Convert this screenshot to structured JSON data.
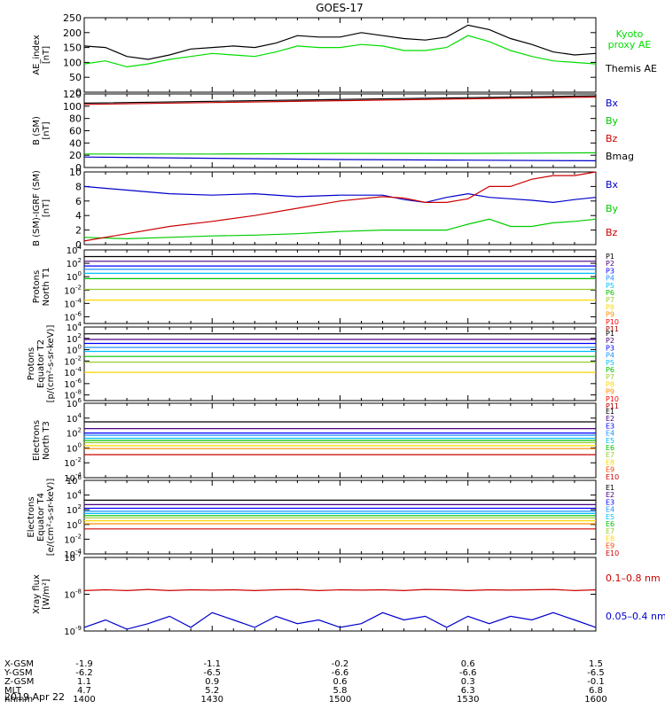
{
  "title": "GOES-17",
  "date_label": "2019 Apr 22",
  "chart_data": [
    {
      "type": "line",
      "panel": "ae",
      "ylabel": "AE_index\n[nT]",
      "ylim": [
        0,
        250
      ],
      "yticks": [
        "0",
        "50",
        "100",
        "150",
        "200",
        "250"
      ],
      "log": false,
      "x": [
        0,
        5,
        10,
        15,
        20,
        25,
        30,
        35,
        40,
        45,
        50,
        55,
        60,
        65,
        70,
        75,
        80,
        85,
        90,
        95,
        100,
        105,
        110,
        115,
        120
      ],
      "series": [
        {
          "name": "Themis AE",
          "color": "#000000",
          "values": [
            155,
            150,
            120,
            110,
            125,
            145,
            150,
            155,
            150,
            165,
            190,
            185,
            185,
            200,
            190,
            180,
            175,
            185,
            225,
            210,
            180,
            160,
            135,
            125,
            130
          ]
        },
        {
          "name": "Kyoto proxy AE",
          "color": "#00dd00",
          "values": [
            95,
            105,
            85,
            95,
            110,
            120,
            130,
            125,
            120,
            135,
            155,
            150,
            150,
            160,
            155,
            140,
            140,
            150,
            190,
            170,
            140,
            120,
            105,
            100,
            95
          ]
        }
      ],
      "legend": [
        {
          "text": "Kyoto\nproxy AE",
          "color": "#00dd00"
        },
        {
          "text": "Themis AE",
          "color": "#000000"
        }
      ]
    },
    {
      "type": "line",
      "panel": "bsm",
      "ylabel": "B (SM)\n[nT]",
      "ylim": [
        0,
        120
      ],
      "yticks": [
        "0",
        "20",
        "40",
        "60",
        "80",
        "100",
        "120"
      ],
      "log": false,
      "x": [
        0,
        30,
        60,
        90,
        120
      ],
      "series": [
        {
          "name": "Bx",
          "color": "#0000cc",
          "values": [
            17,
            15,
            13,
            12,
            11
          ]
        },
        {
          "name": "By",
          "color": "#00cc00",
          "values": [
            22,
            22,
            23,
            23,
            24
          ]
        },
        {
          "name": "Bz",
          "color": "#cc0000",
          "values": [
            103,
            106,
            109,
            112,
            115
          ]
        },
        {
          "name": "Bmag",
          "color": "#000000",
          "values": [
            105,
            108,
            111,
            114,
            117
          ]
        }
      ],
      "legend": [
        {
          "text": "Bx",
          "color": "#0000cc"
        },
        {
          "text": "By",
          "color": "#00cc00"
        },
        {
          "text": "Bz",
          "color": "#cc0000"
        },
        {
          "text": "Bmag",
          "color": "#000000"
        }
      ]
    },
    {
      "type": "line",
      "panel": "bdiff",
      "ylabel": "B (SM)-IGRF (SM)\n[nT]",
      "ylim": [
        0,
        10
      ],
      "yticks": [
        "0",
        "2",
        "4",
        "6",
        "8",
        "10"
      ],
      "log": false,
      "x": [
        0,
        10,
        20,
        30,
        40,
        50,
        60,
        70,
        75,
        80,
        85,
        90,
        95,
        100,
        105,
        110,
        115,
        120
      ],
      "series": [
        {
          "name": "Bx",
          "color": "#0000cc",
          "values": [
            8,
            7.5,
            7,
            6.8,
            7,
            6.6,
            6.8,
            6.8,
            6.2,
            5.8,
            6.5,
            7,
            6.5,
            6.3,
            6.1,
            5.8,
            6.2,
            6.5
          ]
        },
        {
          "name": "By",
          "color": "#00cc00",
          "values": [
            1,
            0.8,
            1,
            1.2,
            1.3,
            1.5,
            1.8,
            2,
            2,
            2,
            2,
            2.8,
            3.5,
            2.5,
            2.5,
            3,
            3.2,
            3.5
          ]
        },
        {
          "name": "Bz",
          "color": "#cc0000",
          "values": [
            0.5,
            1.5,
            2.5,
            3.2,
            4,
            5,
            6,
            6.6,
            6.4,
            5.8,
            5.8,
            6.3,
            8,
            8,
            9,
            9.5,
            9.5,
            10
          ]
        }
      ],
      "legend": [
        {
          "text": "Bx",
          "color": "#0000cc"
        },
        {
          "text": "By",
          "color": "#00cc00"
        },
        {
          "text": "Bz",
          "color": "#cc0000"
        }
      ]
    },
    {
      "type": "line",
      "panel": "pn",
      "ylabel": "Protons\nNorth T1",
      "ylim": [
        -7,
        4
      ],
      "yticks": [
        "10^-6",
        "10^-4",
        "10^-2",
        "10^0",
        "10^2",
        "10^4"
      ],
      "log": true,
      "x": [
        0,
        120
      ],
      "series": [
        {
          "name": "P1",
          "color": "#000000",
          "values": [
            3.0,
            3.0
          ]
        },
        {
          "name": "P2",
          "color": "#4b0082",
          "values": [
            2.3,
            2.3
          ]
        },
        {
          "name": "P3",
          "color": "#0000ff",
          "values": [
            1.6,
            1.6
          ]
        },
        {
          "name": "P4",
          "color": "#1e90ff",
          "values": [
            1.1,
            1.1
          ]
        },
        {
          "name": "P5",
          "color": "#00bfff",
          "values": [
            0.5,
            0.5
          ]
        },
        {
          "name": "P6",
          "color": "#00c000",
          "values": [
            -0.3,
            -0.3
          ]
        },
        {
          "name": "P7",
          "color": "#9acd32",
          "values": [
            -1.9,
            -1.9
          ]
        },
        {
          "name": "P8",
          "color": "#ffd700",
          "values": [
            -3.5,
            -3.5
          ]
        }
      ],
      "legend": [
        {
          "text": "P1",
          "color": "#000000"
        },
        {
          "text": "P2",
          "color": "#4b0082"
        },
        {
          "text": "P3",
          "color": "#0000ff"
        },
        {
          "text": "P4",
          "color": "#1e90ff"
        },
        {
          "text": "P5",
          "color": "#00bfff"
        },
        {
          "text": "P6",
          "color": "#00c000"
        },
        {
          "text": "P7",
          "color": "#9acd32"
        },
        {
          "text": "P8",
          "color": "#ffd700"
        },
        {
          "text": "P9",
          "color": "#ff8c00"
        },
        {
          "text": "P10",
          "color": "#ff0000"
        },
        {
          "text": "P11",
          "color": "#b00000"
        }
      ]
    },
    {
      "type": "line",
      "panel": "pe",
      "ylabel": "Protons\nEquator T2\n[p/(cm²-s-sr-keV)]",
      "ylim": [
        -9,
        4
      ],
      "yticks": [
        "10^-8",
        "10^-6",
        "10^-4",
        "10^-2",
        "10^0",
        "10^2",
        "10^4"
      ],
      "log": true,
      "x": [
        0,
        120
      ],
      "series": [
        {
          "name": "P1",
          "color": "#000000",
          "values": [
            2.8,
            2.8
          ]
        },
        {
          "name": "P2",
          "color": "#4b0082",
          "values": [
            1.8,
            1.8
          ]
        },
        {
          "name": "P3",
          "color": "#0000ff",
          "values": [
            1.1,
            1.1
          ]
        },
        {
          "name": "P4",
          "color": "#1e90ff",
          "values": [
            0.4,
            0.4
          ]
        },
        {
          "name": "P5",
          "color": "#00bfff",
          "values": [
            -0.3,
            -0.3
          ]
        },
        {
          "name": "P6",
          "color": "#00c000",
          "values": [
            -1.2,
            -1.2
          ]
        },
        {
          "name": "P7",
          "color": "#9acd32",
          "values": [
            -2.2,
            -2.2
          ]
        },
        {
          "name": "P8",
          "color": "#ffd700",
          "values": [
            -4.0,
            -4.0
          ]
        }
      ],
      "legend": [
        {
          "text": "P1",
          "color": "#000000"
        },
        {
          "text": "P2",
          "color": "#4b0082"
        },
        {
          "text": "P3",
          "color": "#0000ff"
        },
        {
          "text": "P4",
          "color": "#1e90ff"
        },
        {
          "text": "P5",
          "color": "#00bfff"
        },
        {
          "text": "P6",
          "color": "#00c000"
        },
        {
          "text": "P7",
          "color": "#9acd32"
        },
        {
          "text": "P8",
          "color": "#ffd700"
        },
        {
          "text": "P9",
          "color": "#ff8c00"
        },
        {
          "text": "P10",
          "color": "#ff0000"
        },
        {
          "text": "P11",
          "color": "#b00000"
        }
      ]
    },
    {
      "type": "line",
      "panel": "en",
      "ylabel": "Electrons\nNorth T3",
      "ylim": [
        -4,
        6
      ],
      "yticks": [
        "10^-4",
        "10^-2",
        "10^0",
        "10^2",
        "10^4",
        "10^6"
      ],
      "log": true,
      "x": [
        0,
        120
      ],
      "series": [
        {
          "name": "E1",
          "color": "#000000",
          "values": [
            3.5,
            3.5
          ]
        },
        {
          "name": "E2",
          "color": "#4b0082",
          "values": [
            2.6,
            2.6
          ]
        },
        {
          "name": "E3",
          "color": "#0000ff",
          "values": [
            2.0,
            2.0
          ]
        },
        {
          "name": "E4",
          "color": "#1e90ff",
          "values": [
            1.7,
            1.7
          ]
        },
        {
          "name": "E5",
          "color": "#00bfff",
          "values": [
            1.3,
            1.3
          ]
        },
        {
          "name": "E6",
          "color": "#00c000",
          "values": [
            1.0,
            1.0
          ]
        },
        {
          "name": "E7",
          "color": "#9acd32",
          "values": [
            0.7,
            0.7
          ]
        },
        {
          "name": "E8",
          "color": "#ffd700",
          "values": [
            0.3,
            0.3
          ]
        },
        {
          "name": "E9",
          "color": "#ff8c00",
          "values": [
            -0.1,
            -0.1
          ]
        },
        {
          "name": "E10",
          "color": "#cc0000",
          "values": [
            -0.9,
            -0.9
          ]
        }
      ],
      "legend": [
        {
          "text": "E1",
          "color": "#000000"
        },
        {
          "text": "E2",
          "color": "#4b0082"
        },
        {
          "text": "E3",
          "color": "#0000ff"
        },
        {
          "text": "E4",
          "color": "#1e90ff"
        },
        {
          "text": "E5",
          "color": "#00bfff"
        },
        {
          "text": "E6",
          "color": "#00c000"
        },
        {
          "text": "E7",
          "color": "#9acd32"
        },
        {
          "text": "E8",
          "color": "#ffd700"
        },
        {
          "text": "E9",
          "color": "#ff4500"
        },
        {
          "text": "E10",
          "color": "#cc0000"
        }
      ]
    },
    {
      "type": "line",
      "panel": "ee",
      "ylabel": "Electrons\nEquator T4\n[e/(cm²-s-sr-keV)]",
      "ylim": [
        -4,
        6
      ],
      "yticks": [
        "10^-4",
        "10^-2",
        "10^0",
        "10^2",
        "10^4",
        "10^6"
      ],
      "log": true,
      "x": [
        0,
        120
      ],
      "series": [
        {
          "name": "E1",
          "color": "#000000",
          "values": [
            3.3,
            3.3
          ]
        },
        {
          "name": "E2",
          "color": "#4b0082",
          "values": [
            2.7,
            2.7
          ]
        },
        {
          "name": "E3",
          "color": "#0000ff",
          "values": [
            2.2,
            2.2
          ]
        },
        {
          "name": "E4",
          "color": "#1e90ff",
          "values": [
            1.8,
            1.8
          ]
        },
        {
          "name": "E5",
          "color": "#00bfff",
          "values": [
            1.5,
            1.5
          ]
        },
        {
          "name": "E6",
          "color": "#00c000",
          "values": [
            1.2,
            1.2
          ]
        },
        {
          "name": "E7",
          "color": "#9acd32",
          "values": [
            0.9,
            0.9
          ]
        },
        {
          "name": "E8",
          "color": "#ffd700",
          "values": [
            0.5,
            0.5
          ]
        },
        {
          "name": "E9",
          "color": "#ff8c00",
          "values": [
            0.1,
            0.1
          ]
        },
        {
          "name": "E10",
          "color": "#cc0000",
          "values": [
            -0.6,
            -0.6
          ]
        }
      ],
      "legend": [
        {
          "text": "E1",
          "color": "#000000"
        },
        {
          "text": "E2",
          "color": "#4b0082"
        },
        {
          "text": "E3",
          "color": "#0000ff"
        },
        {
          "text": "E4",
          "color": "#1e90ff"
        },
        {
          "text": "E5",
          "color": "#00bfff"
        },
        {
          "text": "E6",
          "color": "#00c000"
        },
        {
          "text": "E7",
          "color": "#9acd32"
        },
        {
          "text": "E8",
          "color": "#ffd700"
        },
        {
          "text": "E9",
          "color": "#ff4500"
        },
        {
          "text": "E10",
          "color": "#cc0000"
        }
      ]
    },
    {
      "type": "line",
      "panel": "xray",
      "ylabel": "Xray flux\n[W/m²]",
      "ylim": [
        -9,
        -7
      ],
      "yticks": [
        "10^-9",
        "10^-8",
        "10^-7"
      ],
      "log": true,
      "x": [
        0,
        5,
        10,
        15,
        20,
        25,
        30,
        35,
        40,
        45,
        50,
        55,
        60,
        65,
        70,
        75,
        80,
        85,
        90,
        95,
        100,
        105,
        110,
        115,
        120
      ],
      "series": [
        {
          "name": "0.1-0.8 nm",
          "color": "#cc0000",
          "values": [
            -7.9,
            -7.88,
            -7.9,
            -7.87,
            -7.9,
            -7.88,
            -7.89,
            -7.88,
            -7.9,
            -7.88,
            -7.87,
            -7.9,
            -7.88,
            -7.89,
            -7.88,
            -7.9,
            -7.87,
            -7.88,
            -7.9,
            -7.88,
            -7.89,
            -7.88,
            -7.87,
            -7.9,
            -7.88
          ]
        },
        {
          "name": "0.05-0.4 nm",
          "color": "#0000cc",
          "values": [
            -8.9,
            -8.7,
            -8.95,
            -8.8,
            -8.6,
            -8.9,
            -8.5,
            -8.7,
            -8.9,
            -8.6,
            -8.8,
            -8.7,
            -8.9,
            -8.8,
            -8.5,
            -8.7,
            -8.6,
            -8.9,
            -8.6,
            -8.8,
            -8.6,
            -8.7,
            -8.5,
            -8.7,
            -8.9
          ]
        }
      ],
      "legend": [
        {
          "text": "0.1–0.8 nm",
          "color": "#cc0000"
        },
        {
          "text": "0.05–0.4 nm",
          "color": "#0000cc"
        }
      ]
    }
  ],
  "x_axis": {
    "xlim": [
      0,
      120
    ],
    "tick_positions": [
      0,
      30,
      60,
      90,
      120
    ],
    "rows": [
      {
        "label": "X-GSM",
        "values": [
          "-1.9",
          "-1.1",
          "-0.2",
          "0.6",
          "1.5"
        ]
      },
      {
        "label": "Y-GSM",
        "values": [
          "-6.2",
          "-6.5",
          "-6.6",
          "-6.6",
          "-6.5"
        ]
      },
      {
        "label": "Z-GSM",
        "values": [
          "1.1",
          "0.9",
          "0.6",
          "0.3",
          "-0.1"
        ]
      },
      {
        "label": "MLT",
        "values": [
          "4.7",
          "5.2",
          "5.8",
          "6.3",
          "6.8"
        ]
      },
      {
        "label": "hhmm",
        "values": [
          "1400",
          "1430",
          "1500",
          "1530",
          "1600"
        ]
      }
    ]
  }
}
